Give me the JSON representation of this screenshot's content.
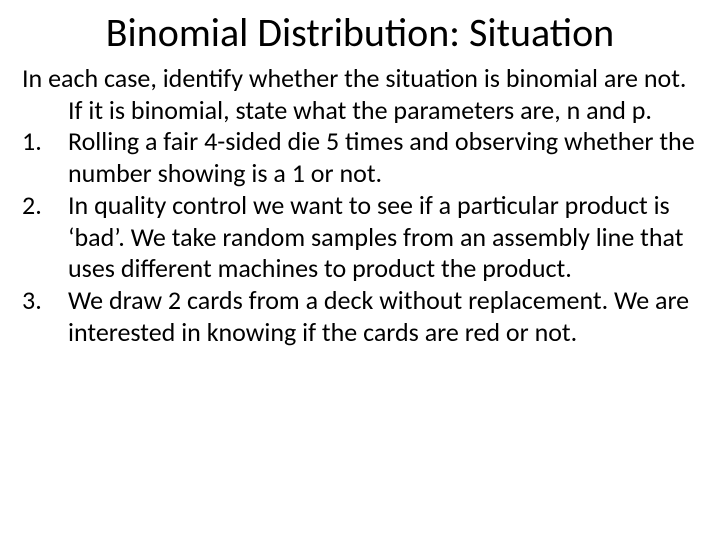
{
  "title": "Binomial Distribution: Situation",
  "intro": "In each case, identify whether the situation is binomial are not. If it is binomial, state what the parameters are, n and p.",
  "items": [
    "Rolling a fair 4-sided die 5 times and observing whether the number showing is a 1 or not.",
    "In quality control we want to see if a particular product is ‘bad’. We take random samples from an assembly line that uses different machines to product the product.",
    "We draw 2 cards from a deck without replacement. We are interested in knowing if the cards are red or not."
  ],
  "style": {
    "background_color": "#ffffff",
    "text_color": "#000000",
    "title_fontsize": 40,
    "body_fontsize": 26,
    "font_family": "Calibri"
  }
}
